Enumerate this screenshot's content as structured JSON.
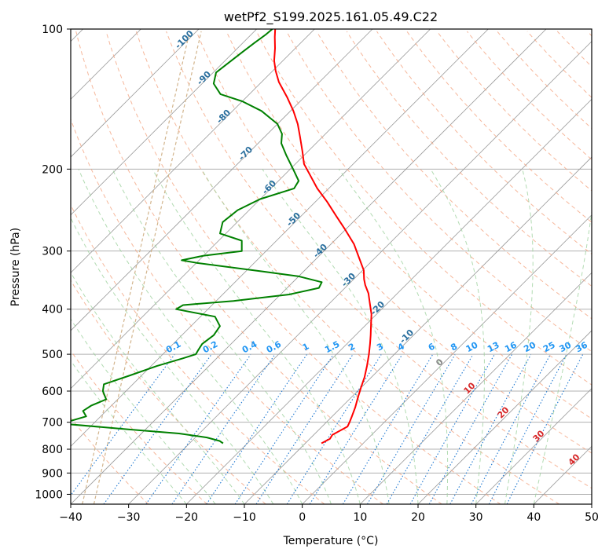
{
  "chart_data": {
    "type": "line",
    "subtype": "skew-T log-P diagram",
    "title": "wetPf2_S199.2025.161.05.49.C22",
    "xlabel": "Temperature (°C)",
    "ylabel": "Pressure (hPa)",
    "xlim": [
      -40,
      50
    ],
    "ylim": [
      1050,
      100
    ],
    "y_scale": "log",
    "x_ticks": [
      "−40",
      "−30",
      "−20",
      "−10",
      "0",
      "10",
      "20",
      "30",
      "40",
      "50"
    ],
    "y_ticks": [
      "100",
      "200",
      "300",
      "400",
      "500",
      "600",
      "700",
      "800",
      "900",
      "1000"
    ],
    "grid": true,
    "background_lines": {
      "skewed_isotherm_labels": [
        "-100",
        "-90",
        "-80",
        "-70",
        "-60",
        "-50",
        "-40",
        "-30",
        "-20",
        "-10",
        "0",
        "10",
        "20",
        "30",
        "40"
      ],
      "mixing_ratio_labels": [
        "0.1",
        "0.2",
        "0.4",
        "0.6",
        "1",
        "1.5",
        "2",
        "3",
        "4",
        "6",
        "8",
        "10",
        "13",
        "16",
        "20",
        "25",
        "30",
        "36"
      ],
      "colors": {
        "isotherm": "#999999",
        "isotherm_label_cold": "#2a6f9e",
        "isotherm_label_zero": "#888888",
        "isotherm_label_warm": "#d62728",
        "dry_adiabat": "#f4a582",
        "moist_adiabat": "#9fd29f",
        "mixing_ratio": "#1f78d1",
        "mixing_ratio_label": "#2196f3",
        "pressure_grid": "#b0b0b0",
        "saturation_curve": "#d2b48c"
      }
    },
    "series": [
      {
        "color": "#ff0000",
        "points": [
          [
            -7.2,
            777
          ],
          [
            -6.5,
            760
          ],
          [
            -6.8,
            745
          ],
          [
            -6.2,
            730
          ],
          [
            -5.6,
            715
          ],
          [
            -6.0,
            700
          ],
          [
            -6.6,
            680
          ],
          [
            -7.6,
            650
          ],
          [
            -8.8,
            620
          ],
          [
            -10.0,
            590
          ],
          [
            -11.2,
            560
          ],
          [
            -12.7,
            530
          ],
          [
            -14.4,
            500
          ],
          [
            -16.0,
            475
          ],
          [
            -17.4,
            455
          ],
          [
            -19.3,
            430
          ],
          [
            -20.9,
            410
          ],
          [
            -22.9,
            390
          ],
          [
            -25.0,
            370
          ],
          [
            -27.0,
            355
          ],
          [
            -28.2,
            345
          ],
          [
            -29.8,
            330
          ],
          [
            -32.8,
            310
          ],
          [
            -36.0,
            290
          ],
          [
            -40.0,
            270
          ],
          [
            -44.0,
            252
          ],
          [
            -48.0,
            235
          ],
          [
            -52.0,
            220
          ],
          [
            -55.8,
            205
          ],
          [
            -58.5,
            195
          ],
          [
            -61.0,
            183
          ],
          [
            -64.0,
            170
          ],
          [
            -66.5,
            160
          ],
          [
            -69.5,
            150
          ],
          [
            -73.0,
            140
          ],
          [
            -77.0,
            130
          ],
          [
            -79.5,
            123
          ],
          [
            -81.5,
            117
          ],
          [
            -83.5,
            110
          ],
          [
            -85.5,
            104
          ],
          [
            -86.8,
            100
          ]
        ]
      },
      {
        "color": "#008000",
        "points": [
          [
            -24.2,
            777
          ],
          [
            -25.2,
            768
          ],
          [
            -28.0,
            755
          ],
          [
            -33.5,
            740
          ],
          [
            -43.0,
            725
          ],
          [
            -54.2,
            707
          ],
          [
            -55.0,
            700
          ],
          [
            -52.5,
            680
          ],
          [
            -54.0,
            662
          ],
          [
            -53.5,
            645
          ],
          [
            -52.0,
            625
          ],
          [
            -54.0,
            600
          ],
          [
            -55.0,
            580
          ],
          [
            -52.0,
            555
          ],
          [
            -49.0,
            530
          ],
          [
            -45.8,
            510
          ],
          [
            -44.3,
            500
          ],
          [
            -44.6,
            490
          ],
          [
            -45.0,
            475
          ],
          [
            -44.5,
            455
          ],
          [
            -45.0,
            435
          ],
          [
            -47.5,
            415
          ],
          [
            -55.5,
            400
          ],
          [
            -55.0,
            392
          ],
          [
            -47.0,
            384
          ],
          [
            -38.5,
            372
          ],
          [
            -34.5,
            360
          ],
          [
            -35.0,
            350
          ],
          [
            -40.0,
            340
          ],
          [
            -47.0,
            332
          ],
          [
            -60.0,
            318
          ],
          [
            -63.0,
            314
          ],
          [
            -60.0,
            307
          ],
          [
            -54.2,
            300
          ],
          [
            -56.0,
            285
          ],
          [
            -61.0,
            275
          ],
          [
            -62.5,
            260
          ],
          [
            -62.0,
            245
          ],
          [
            -60.0,
            232
          ],
          [
            -56.0,
            220
          ],
          [
            -56.5,
            212
          ],
          [
            -59.5,
            200
          ],
          [
            -63.0,
            187
          ],
          [
            -66.0,
            176
          ],
          [
            -67.5,
            168
          ],
          [
            -70.0,
            160
          ],
          [
            -75.0,
            150
          ],
          [
            -80.0,
            143
          ],
          [
            -85.0,
            138
          ],
          [
            -88.0,
            131
          ],
          [
            -89.5,
            124
          ],
          [
            -89.0,
            118
          ],
          [
            -88.5,
            112
          ],
          [
            -88.0,
            107
          ],
          [
            -87.5,
            103
          ],
          [
            -87.3,
            100
          ]
        ]
      }
    ]
  }
}
